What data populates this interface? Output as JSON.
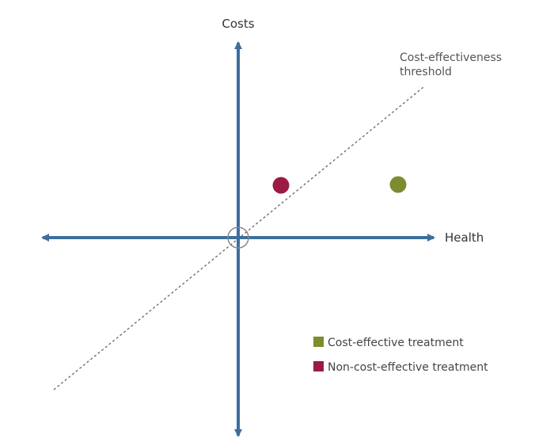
{
  "diagram": {
    "y_axis_label": "Costs",
    "x_axis_label": "Health",
    "threshold_label_line1": "Cost-effectiveness",
    "threshold_label_line2": "threshold",
    "legend": [
      {
        "label": "Cost-effective treatment",
        "color": "#7d8c2e"
      },
      {
        "label": "Non-cost-effective treatment",
        "color": "#9b1b45"
      }
    ],
    "points": [
      {
        "kind": "non-cost-effective",
        "color": "#9b1b45"
      },
      {
        "kind": "cost-effective",
        "color": "#7d8c2e"
      }
    ],
    "axis_color": "#3d6f9e",
    "threshold_color": "#666666"
  }
}
